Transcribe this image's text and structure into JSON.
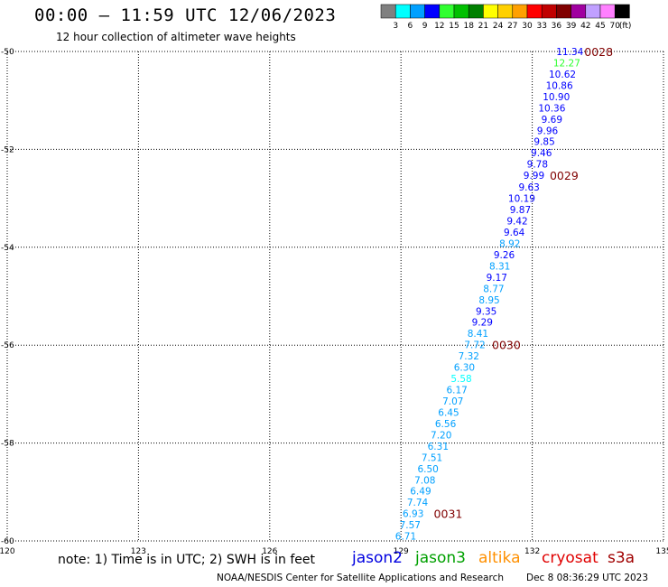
{
  "header": {
    "title": "00:00 – 11:59 UTC 12/06/2023",
    "subtitle": "12 hour collection of altimeter wave heights"
  },
  "legend_scale": {
    "colors": [
      "#808080",
      "#00ffff",
      "#00a0ff",
      "#0000ff",
      "#30ff30",
      "#00c000",
      "#008000",
      "#ffff00",
      "#ffd000",
      "#ffa000",
      "#ff0000",
      "#c00000",
      "#800000",
      "#a000a0",
      "#c0a0ff",
      "#ff80ff",
      "#000000"
    ],
    "labels": [
      "3",
      "6",
      "9",
      "12",
      "15",
      "18",
      "21",
      "24",
      "27",
      "30",
      "33",
      "36",
      "39",
      "42",
      "45",
      "70"
    ],
    "unit": "(ft)"
  },
  "footer": {
    "note": "note: 1) Time is in UTC; 2) SWH is in feet",
    "satellites": [
      {
        "label": "jason2",
        "color": "#0000e0"
      },
      {
        "label": "jason3",
        "color": "#00a000"
      },
      {
        "label": "altika",
        "color": "#ff9000"
      },
      {
        "label": "cryosat",
        "color": "#e00000"
      },
      {
        "label": "s3a",
        "color": "#a00000"
      }
    ],
    "credit": "NOAA/NESDIS Center for Satellite Applications and Research",
    "timestamp": "Dec  8 08:36:29 UTC 2023"
  },
  "chart_data": {
    "type": "scatter",
    "title": "00:00 – 11:59 UTC 12/06/2023",
    "xlim": [
      120,
      135
    ],
    "ylim": [
      -60,
      -50
    ],
    "xticks": [
      {
        "v": 120,
        "t": "120"
      },
      {
        "v": 123,
        "t": "123"
      },
      {
        "v": 126,
        "t": "126"
      },
      {
        "v": 129,
        "t": "129"
      },
      {
        "v": 132,
        "t": "132"
      },
      {
        "v": 135,
        "t": "135"
      }
    ],
    "yticks": [
      {
        "v": -50,
        "t": "-50"
      },
      {
        "v": -52,
        "t": "-52"
      },
      {
        "v": -54,
        "t": "-54"
      },
      {
        "v": -56,
        "t": "-56"
      },
      {
        "v": -58,
        "t": "-58"
      },
      {
        "v": -60,
        "t": "-60"
      }
    ],
    "grid": true,
    "points": [
      {
        "lon": 133.17,
        "lat": -50.0,
        "v": "11.34",
        "c": "#0000ff"
      },
      {
        "lon": 133.1,
        "lat": -50.23,
        "v": "12.27",
        "c": "#30ff30"
      },
      {
        "lon": 133.0,
        "lat": -50.46,
        "v": "10.62",
        "c": "#0000ff"
      },
      {
        "lon": 132.93,
        "lat": -50.69,
        "v": "10.86",
        "c": "#0000ff"
      },
      {
        "lon": 132.86,
        "lat": -50.92,
        "v": "10.90",
        "c": "#0000ff"
      },
      {
        "lon": 132.76,
        "lat": -51.15,
        "v": "10.36",
        "c": "#0000ff"
      },
      {
        "lon": 132.69,
        "lat": -51.38,
        "v": "9.69",
        "c": "#0000ff"
      },
      {
        "lon": 132.59,
        "lat": -51.61,
        "v": "9.96",
        "c": "#0000ff"
      },
      {
        "lon": 132.52,
        "lat": -51.84,
        "v": "9.85",
        "c": "#0000ff"
      },
      {
        "lon": 132.45,
        "lat": -52.07,
        "v": "9.46",
        "c": "#0000ff"
      },
      {
        "lon": 132.36,
        "lat": -52.3,
        "v": "9.78",
        "c": "#0000ff"
      },
      {
        "lon": 132.28,
        "lat": -52.53,
        "v": "9.99",
        "c": "#0000ff"
      },
      {
        "lon": 132.17,
        "lat": -52.77,
        "v": "9.63",
        "c": "#0000ff"
      },
      {
        "lon": 132.07,
        "lat": -53.0,
        "v": "10.19",
        "c": "#0000ff"
      },
      {
        "lon": 131.97,
        "lat": -53.23,
        "v": "9.87",
        "c": "#0000ff"
      },
      {
        "lon": 131.9,
        "lat": -53.46,
        "v": "9.42",
        "c": "#0000ff"
      },
      {
        "lon": 131.83,
        "lat": -53.69,
        "v": "9.64",
        "c": "#0000ff"
      },
      {
        "lon": 131.73,
        "lat": -53.92,
        "v": "8.92",
        "c": "#00a0ff"
      },
      {
        "lon": 131.6,
        "lat": -54.15,
        "v": "9.26",
        "c": "#0000ff"
      },
      {
        "lon": 131.5,
        "lat": -54.38,
        "v": "8.31",
        "c": "#00a0ff"
      },
      {
        "lon": 131.43,
        "lat": -54.61,
        "v": "9.17",
        "c": "#0000ff"
      },
      {
        "lon": 131.36,
        "lat": -54.84,
        "v": "8.77",
        "c": "#00a0ff"
      },
      {
        "lon": 131.26,
        "lat": -55.07,
        "v": "8.95",
        "c": "#00a0ff"
      },
      {
        "lon": 131.19,
        "lat": -55.3,
        "v": "9.35",
        "c": "#0000ff"
      },
      {
        "lon": 131.1,
        "lat": -55.53,
        "v": "9.29",
        "c": "#0000ff"
      },
      {
        "lon": 131.0,
        "lat": -55.76,
        "v": "8.41",
        "c": "#00a0ff"
      },
      {
        "lon": 130.93,
        "lat": -55.99,
        "v": "7.72",
        "c": "#00a0ff"
      },
      {
        "lon": 130.79,
        "lat": -56.22,
        "v": "7.32",
        "c": "#00a0ff"
      },
      {
        "lon": 130.69,
        "lat": -56.45,
        "v": "6.30",
        "c": "#00a0ff"
      },
      {
        "lon": 130.62,
        "lat": -56.68,
        "v": "5.58",
        "c": "#00ffff"
      },
      {
        "lon": 130.52,
        "lat": -56.91,
        "v": "6.17",
        "c": "#00a0ff"
      },
      {
        "lon": 130.43,
        "lat": -57.14,
        "v": "7.07",
        "c": "#00a0ff"
      },
      {
        "lon": 130.33,
        "lat": -57.37,
        "v": "6.45",
        "c": "#00a0ff"
      },
      {
        "lon": 130.26,
        "lat": -57.6,
        "v": "6.56",
        "c": "#00a0ff"
      },
      {
        "lon": 130.16,
        "lat": -57.83,
        "v": "7.20",
        "c": "#00a0ff"
      },
      {
        "lon": 130.09,
        "lat": -58.06,
        "v": "6.31",
        "c": "#00a0ff"
      },
      {
        "lon": 129.95,
        "lat": -58.29,
        "v": "7.51",
        "c": "#00a0ff"
      },
      {
        "lon": 129.86,
        "lat": -58.52,
        "v": "6.50",
        "c": "#00a0ff"
      },
      {
        "lon": 129.79,
        "lat": -58.75,
        "v": "7.08",
        "c": "#00a0ff"
      },
      {
        "lon": 129.69,
        "lat": -58.98,
        "v": "6.49",
        "c": "#00a0ff"
      },
      {
        "lon": 129.62,
        "lat": -59.21,
        "v": "7.74",
        "c": "#00a0ff"
      },
      {
        "lon": 129.52,
        "lat": -59.44,
        "v": "6.93",
        "c": "#00a0ff"
      },
      {
        "lon": 129.45,
        "lat": -59.67,
        "v": "7.57",
        "c": "#00a0ff"
      },
      {
        "lon": 129.35,
        "lat": -59.9,
        "v": "6.71",
        "c": "#00a0ff"
      }
    ],
    "time_labels": [
      {
        "lon": 133.19,
        "lat": -50.0,
        "t": "0028"
      },
      {
        "lon": 132.4,
        "lat": -52.53,
        "t": "0029"
      },
      {
        "lon": 131.08,
        "lat": -55.99,
        "t": "0030"
      },
      {
        "lon": 129.75,
        "lat": -59.44,
        "t": "0031"
      }
    ],
    "time_label_color": "#800000"
  }
}
